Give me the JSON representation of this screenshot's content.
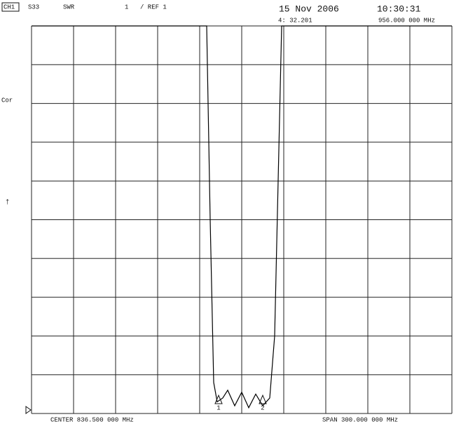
{
  "header": {
    "channel": "CH1",
    "param": "S33",
    "format": "SWR",
    "scale": "1",
    "ref": "/ REF 1",
    "date": "15 Nov 2006",
    "time": "10:30:31",
    "marker_readout": "4: 32.201",
    "marker_freq": "956.000 000 MHz"
  },
  "side": {
    "cor": "Cor",
    "flag": "†"
  },
  "chart_data": {
    "type": "line",
    "x": [
      686.5,
      811.5,
      814,
      816.5,
      819,
      823,
      826.5,
      831.5,
      836.5,
      841.5,
      846.5,
      851.5,
      856.5,
      860,
      862.5,
      865,
      986.5
    ],
    "series": [
      {
        "color": "#000000",
        "values": [
          11,
          11,
          6,
          1.8,
          1.3,
          1.4,
          1.6,
          1.2,
          1.55,
          1.15,
          1.5,
          1.2,
          1.4,
          3,
          7,
          11,
          11
        ]
      }
    ],
    "xlim": [
      686.5,
      986.5
    ],
    "ylim": [
      1,
      11
    ],
    "grid": true,
    "markers": [
      {
        "label": "1",
        "x": 820
      },
      {
        "label": "2",
        "x": 851.5
      }
    ]
  },
  "footer": {
    "center": "CENTER 836.500 000 MHz",
    "span": "SPAN 300.000 000 MHz"
  }
}
